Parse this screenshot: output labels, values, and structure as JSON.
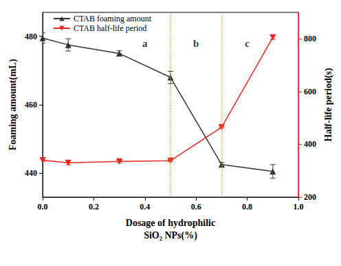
{
  "chart_data": {
    "type": "line",
    "x_label": "Dosage of hydrophilic\nSiO₂ NPs(%)",
    "y_label": "Foaming amount(mL)",
    "y2_label": "Half-life period(s)",
    "xlim": [
      0,
      1
    ],
    "xticks": [
      {
        "value": 0,
        "label": "0.0"
      },
      0.2,
      0.4,
      0.6,
      0.8,
      {
        "value": 1,
        "label": "1.0"
      }
    ],
    "ylim": [
      433,
      487
    ],
    "yticks": [
      440,
      460,
      480
    ],
    "y2lim": [
      200,
      900
    ],
    "y2ticks": [
      200,
      400,
      600,
      800
    ],
    "grid": false,
    "legend": "upper left",
    "series": [
      {
        "name": "CTAB foaming amount",
        "color": "#333333",
        "marker": "triangle",
        "line_style": "solid",
        "x": [
          0,
          0.1,
          0.3,
          0.5,
          0.7,
          0.9
        ],
        "values": [
          479.5,
          477.5,
          475,
          468,
          442.5,
          440.5
        ],
        "errors": [
          1.5,
          1.8,
          0.8,
          1.8,
          0.6,
          2
        ]
      },
      {
        "name": "CTAB half-life period",
        "color": "#e8241f",
        "marker": "triangle-down",
        "line_style": "solid",
        "axis": "y2",
        "x": [
          0,
          0.1,
          0.3,
          0.5,
          0.7,
          0.9
        ],
        "values": [
          340,
          330,
          335,
          338,
          465,
          805
        ],
        "errors": [
          5,
          8,
          5,
          3,
          3,
          7
        ]
      }
    ],
    "vlines": [
      0.5,
      0.7
    ],
    "annotations": [
      {
        "text": "a",
        "x": 0.4,
        "y": 478
      },
      {
        "text": "b",
        "x": 0.6,
        "y": 478
      },
      {
        "text": "c",
        "x": 0.8,
        "y": 478
      }
    ]
  }
}
